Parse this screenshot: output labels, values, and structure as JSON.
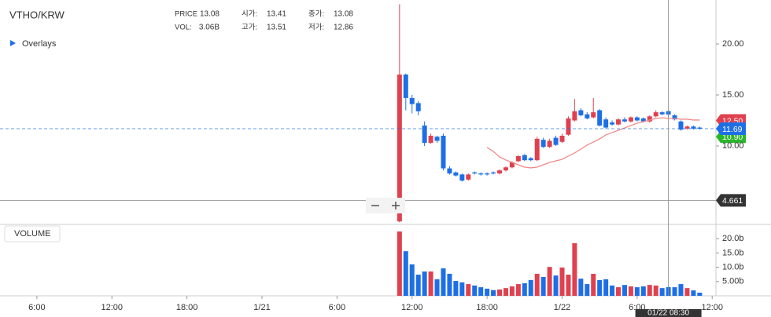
{
  "chart_data": {
    "type": "candlestick",
    "title": "VTHO/KRW",
    "overlays_label": "Overlays",
    "volume_label": "VOLUME",
    "info": [
      {
        "label": "PRICE",
        "value": 13.08
      },
      {
        "label": "시가:",
        "value": 13.41
      },
      {
        "label": "종가:",
        "value": 13.08
      },
      {
        "label": "VOL:",
        "value": "3.06B"
      },
      {
        "label": "고가:",
        "value": 13.51
      },
      {
        "label": "저가:",
        "value": 12.86
      }
    ],
    "up_color": "#e0414f",
    "down_color": "#1e6fe6",
    "x": [
      35,
      35.5,
      36,
      36.5,
      37,
      37.5,
      38,
      38.5,
      39,
      39.5,
      40,
      40.5,
      41,
      41.5,
      42,
      42.5,
      43,
      43.5,
      44,
      44.5,
      45,
      45.5,
      46,
      46.5,
      47,
      47.5,
      48,
      48.5,
      49,
      49.5,
      50,
      50.5,
      51,
      51.5,
      52,
      52.5,
      53,
      53.5,
      54,
      54.5,
      55,
      55.5,
      56,
      56.5,
      57,
      57.5,
      58,
      58.5,
      59
    ],
    "open": [
      2.6,
      17.0,
      14.7,
      14.2,
      12.0,
      10.3,
      10.9,
      11.0,
      7.8,
      7.4,
      7.2,
      6.7,
      7.4,
      7.3,
      7.3,
      7.4,
      7.3,
      7.6,
      7.9,
      8.5,
      9.1,
      8.8,
      8.6,
      10.6,
      9.9,
      10.8,
      10.4,
      11.1,
      12.5,
      13.5,
      13.1,
      12.8,
      13.5,
      12.6,
      12.3,
      12.1,
      12.6,
      12.4,
      12.8,
      12.7,
      12.4,
      12.9,
      13.3,
      13.41,
      13.0,
      12.4,
      11.7,
      11.9,
      11.8
    ],
    "high": [
      23.9,
      17.1,
      15.0,
      14.4,
      12.4,
      11.2,
      11.0,
      11.2,
      8.0,
      7.5,
      7.3,
      7.3,
      7.5,
      7.4,
      7.4,
      7.5,
      7.7,
      8.0,
      8.5,
      9.1,
      9.2,
      8.9,
      10.9,
      10.8,
      10.7,
      11.0,
      11.2,
      12.9,
      14.6,
      13.7,
      13.3,
      14.7,
      13.6,
      12.8,
      12.5,
      12.7,
      12.8,
      12.9,
      12.9,
      12.8,
      13.0,
      13.5,
      13.4,
      13.51,
      13.1,
      12.5,
      12.0,
      12.0,
      11.9
    ],
    "low": [
      2.5,
      13.5,
      13.2,
      13.0,
      10.0,
      10.2,
      10.3,
      7.6,
      7.2,
      7.0,
      6.5,
      6.6,
      7.2,
      7.1,
      7.1,
      7.2,
      7.2,
      7.5,
      7.8,
      8.4,
      8.5,
      8.5,
      8.5,
      9.8,
      9.8,
      10.0,
      10.3,
      11.0,
      12.4,
      12.9,
      12.6,
      12.7,
      11.9,
      11.7,
      12.0,
      12.0,
      12.3,
      12.3,
      12.4,
      12.3,
      12.3,
      12.8,
      13.0,
      12.86,
      12.5,
      11.5,
      11.6,
      11.6,
      11.6
    ],
    "close": [
      17.0,
      14.7,
      14.1,
      13.4,
      10.3,
      11.0,
      10.5,
      7.8,
      7.3,
      7.1,
      6.6,
      7.2,
      7.3,
      7.2,
      7.2,
      7.3,
      7.6,
      7.9,
      8.4,
      9.0,
      8.6,
      8.6,
      10.7,
      9.9,
      10.5,
      10.1,
      11.0,
      12.7,
      13.4,
      13.0,
      12.7,
      13.3,
      12.0,
      11.8,
      12.1,
      12.6,
      12.4,
      12.8,
      12.5,
      12.4,
      12.9,
      13.3,
      13.1,
      13.08,
      12.6,
      11.6,
      11.9,
      11.7,
      11.69
    ],
    "volume": [
      22.5,
      15.6,
      11,
      7.4,
      8.5,
      8.5,
      5.8,
      9.6,
      7.7,
      5.2,
      4.7,
      4.1,
      3.6,
      3,
      2.5,
      2,
      2.2,
      2.7,
      3.3,
      4.1,
      4.4,
      5.5,
      7.7,
      6.6,
      10.1,
      7.1,
      9.9,
      7.4,
      18.4,
      6,
      4.1,
      7.7,
      5.5,
      5.8,
      3.6,
      3,
      3.8,
      3.3,
      3,
      3.3,
      3.8,
      3.6,
      2.7,
      3.06,
      3,
      4.1,
      2.7,
      1.9,
      1.1
    ],
    "ma": {
      "color": "#f08a8a",
      "values": [
        null,
        null,
        null,
        null,
        null,
        null,
        null,
        null,
        null,
        null,
        null,
        null,
        null,
        null,
        9.85,
        9.46,
        8.92,
        8.62,
        8.38,
        8.15,
        7.92,
        7.85,
        7.92,
        8.15,
        8.38,
        8.54,
        8.69,
        9.0,
        9.31,
        9.69,
        10.08,
        10.38,
        10.69,
        11.08,
        11.31,
        11.54,
        11.77,
        12.0,
        12.23,
        12.38,
        12.54,
        12.69,
        12.77,
        12.69,
        12.69,
        12.62,
        12.62,
        12.54,
        12.54
      ]
    },
    "xlim": [
      3.05,
      60.3
    ],
    "xticks": [
      {
        "value": 6,
        "label": "6:00"
      },
      {
        "value": 12,
        "label": "12:00"
      },
      {
        "value": 18,
        "label": "18:00"
      },
      {
        "value": 24,
        "label": "1/21"
      },
      {
        "value": 30,
        "label": "6:00"
      },
      {
        "value": 36,
        "label": "12:00"
      },
      {
        "value": 42,
        "label": "18:00"
      },
      {
        "value": 48,
        "label": "1/22"
      },
      {
        "value": 54,
        "label": "6:00"
      },
      {
        "value": 60,
        "label": "12:00"
      }
    ],
    "ylim": [
      2.38,
      24.31
    ],
    "yticks": [
      {
        "value": 20,
        "label": "20.00"
      },
      {
        "value": 15,
        "label": "15.00"
      },
      {
        "value": 10,
        "label": "10.00"
      }
    ],
    "volume_ylim": [
      0,
      24.7
    ],
    "volume_yticks": [
      {
        "value": 20,
        "label": "20.0b"
      },
      {
        "value": 15,
        "label": "15.0b"
      },
      {
        "value": 10,
        "label": "10.0b"
      },
      {
        "value": 5,
        "label": "5.00b"
      }
    ],
    "price_markers": [
      {
        "value": 12.5,
        "label": "12.50",
        "color": "#e0414f"
      },
      {
        "value": 10.9,
        "label": "10.90",
        "color": "#2cb52c"
      },
      {
        "value": 11.69,
        "color": "#1e6fe6"
      }
    ],
    "crosshair": {
      "x": 56.5,
      "x_label": "01/22 08:30",
      "y": 4.661
    }
  }
}
